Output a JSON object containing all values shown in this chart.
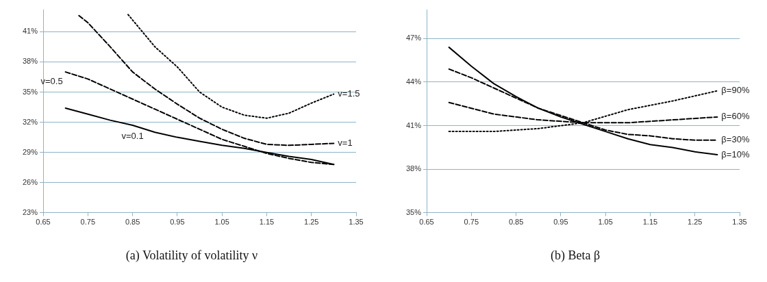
{
  "chart_data": [
    {
      "type": "line",
      "title": "(a) Volatility of volatility ν",
      "xlim": [
        0.65,
        1.35
      ],
      "xticks": [
        0.65,
        0.75,
        0.85,
        0.95,
        1.05,
        1.15,
        1.25,
        1.35
      ],
      "ylim": [
        23,
        43.2
      ],
      "yticks": [
        {
          "value": 23,
          "label": "23%"
        },
        {
          "value": 26,
          "label": "26%"
        },
        {
          "value": 29,
          "label": "29%"
        },
        {
          "value": 32,
          "label": "32%"
        },
        {
          "value": 35,
          "label": "35%"
        },
        {
          "value": 38,
          "label": "38%"
        },
        {
          "value": 41,
          "label": "41%"
        }
      ],
      "grid": "y",
      "legend": false,
      "marker": "none",
      "series": [
        {
          "color": "#000000",
          "line_style": "solid",
          "x": [
            0.7,
            0.75,
            0.8,
            0.85,
            0.9,
            0.95,
            1.0,
            1.05,
            1.1,
            1.15,
            1.2,
            1.25,
            1.3
          ],
          "values": [
            33.4,
            32.8,
            32.2,
            31.7,
            31.0,
            30.5,
            30.1,
            29.7,
            29.4,
            29.0,
            28.6,
            28.3,
            27.8
          ]
        },
        {
          "color": "#000000",
          "line_style": "dashed",
          "x": [
            0.7,
            0.75,
            0.8,
            0.85,
            0.9,
            0.95,
            1.0,
            1.05,
            1.1,
            1.15,
            1.2,
            1.25,
            1.3
          ],
          "values": [
            37.0,
            36.3,
            35.3,
            34.3,
            33.3,
            32.3,
            31.3,
            30.3,
            29.6,
            28.9,
            28.4,
            28.0,
            27.8
          ]
        },
        {
          "color": "#000000",
          "line_style": "dashed",
          "x": [
            0.73,
            0.75,
            0.8,
            0.85,
            0.9,
            0.95,
            1.0,
            1.05,
            1.1,
            1.15,
            1.2,
            1.25,
            1.3
          ],
          "values": [
            42.6,
            41.9,
            39.5,
            37.0,
            35.3,
            33.8,
            32.4,
            31.3,
            30.4,
            29.8,
            29.7,
            29.8,
            29.9
          ]
        },
        {
          "color": "#000000",
          "line_style": "dotted",
          "x": [
            0.84,
            0.9,
            0.95,
            1.0,
            1.05,
            1.1,
            1.15,
            1.2,
            1.25,
            1.3
          ],
          "values": [
            42.7,
            39.5,
            37.5,
            35.0,
            33.5,
            32.7,
            32.4,
            32.9,
            33.9,
            34.8
          ]
        }
      ],
      "annotations": [
        {
          "text": "v=0.1",
          "x": 0.85,
          "y": 31.7
        },
        {
          "text": "v=0.5",
          "x": 0.7,
          "y": 37.0
        },
        {
          "text": "v=1",
          "x": 1.3,
          "y": 29.9
        },
        {
          "text": "v=1.5",
          "x": 1.3,
          "y": 34.8
        }
      ]
    },
    {
      "type": "line",
      "title": "(b) Beta β",
      "xlim": [
        0.65,
        1.35
      ],
      "xticks": [
        0.65,
        0.75,
        0.85,
        0.95,
        1.05,
        1.15,
        1.25,
        1.35
      ],
      "ylim": [
        35,
        49
      ],
      "yticks": [
        {
          "value": 35,
          "label": "35%"
        },
        {
          "value": 38,
          "label": "38%"
        },
        {
          "value": 41,
          "label": "41%"
        },
        {
          "value": 44,
          "label": "44%"
        },
        {
          "value": 47,
          "label": "47%"
        }
      ],
      "grid": "y",
      "legend": false,
      "marker": "none",
      "series": [
        {
          "color": "#000000",
          "line_style": "solid",
          "x": [
            0.7,
            0.75,
            0.8,
            0.85,
            0.9,
            0.95,
            1.0,
            1.05,
            1.1,
            1.15,
            1.2,
            1.25,
            1.3
          ],
          "values": [
            46.4,
            45.1,
            43.9,
            43.0,
            42.2,
            41.6,
            41.1,
            40.6,
            40.1,
            39.7,
            39.5,
            39.2,
            39.0
          ]
        },
        {
          "color": "#000000",
          "line_style": "dashed",
          "x": [
            0.7,
            0.75,
            0.8,
            0.85,
            0.9,
            0.95,
            1.0,
            1.05,
            1.1,
            1.15,
            1.2,
            1.25,
            1.3
          ],
          "values": [
            44.9,
            44.3,
            43.6,
            42.9,
            42.2,
            41.7,
            41.2,
            40.7,
            40.4,
            40.3,
            40.1,
            40.0,
            40.0
          ]
        },
        {
          "color": "#000000",
          "line_style": "dashed",
          "x": [
            0.7,
            0.8,
            0.9,
            1.0,
            1.1,
            1.2,
            1.3
          ],
          "values": [
            42.6,
            41.8,
            41.4,
            41.2,
            41.2,
            41.4,
            41.6
          ]
        },
        {
          "color": "#000000",
          "line_style": "dotted",
          "x": [
            0.7,
            0.8,
            0.9,
            1.0,
            1.1,
            1.2,
            1.3
          ],
          "values": [
            40.6,
            40.6,
            40.8,
            41.2,
            42.1,
            42.7,
            43.4
          ]
        }
      ],
      "annotations": [
        {
          "text": "β=90%",
          "x": 1.3,
          "y": 43.4
        },
        {
          "text": "β=60%",
          "x": 1.3,
          "y": 41.6
        },
        {
          "text": "β=30%",
          "x": 1.3,
          "y": 40.0
        },
        {
          "text": "β=10%",
          "x": 1.3,
          "y": 39.0
        }
      ]
    }
  ]
}
